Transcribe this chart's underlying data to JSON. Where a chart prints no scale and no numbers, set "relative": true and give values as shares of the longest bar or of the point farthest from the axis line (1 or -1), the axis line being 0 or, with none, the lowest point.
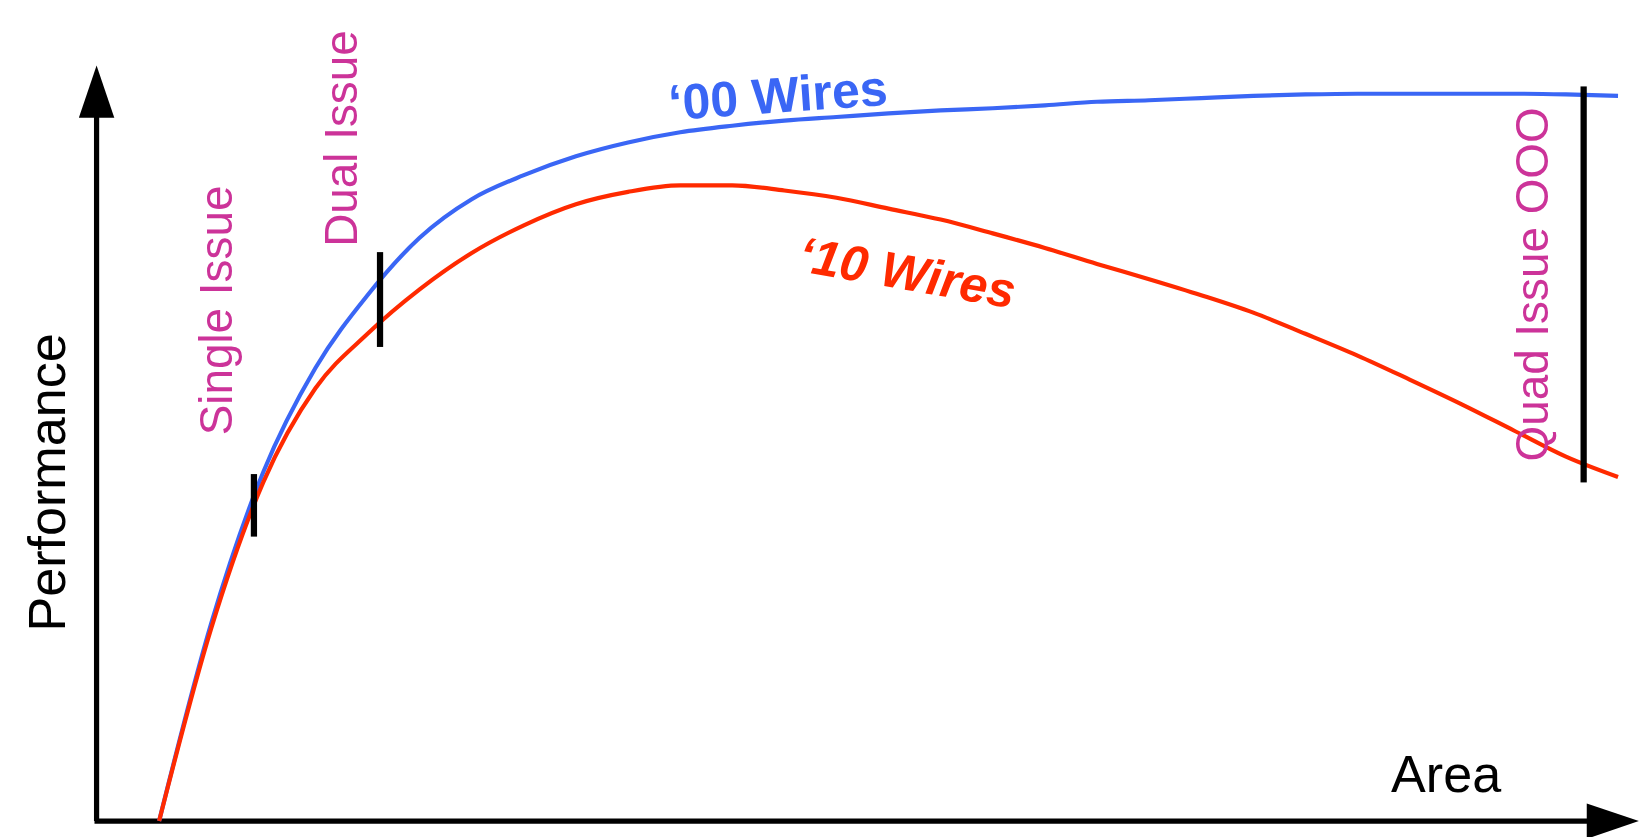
{
  "chart_data": {
    "type": "line",
    "relative": true,
    "xlabel": "Area",
    "ylabel": "Performance",
    "marker": "none",
    "line_style": "solid",
    "categories": [
      null,
      null,
      null,
      null,
      null,
      null,
      null,
      null,
      null,
      null,
      null,
      null,
      null,
      null,
      null,
      null,
      null,
      null,
      null,
      null,
      null,
      null,
      null,
      null,
      null,
      null,
      null,
      null,
      null
    ],
    "series": [
      {
        "name": "‘00 Wires",
        "color": "#3a66f5",
        "values": [
          0,
          0.272,
          0.48,
          0.623,
          0.723,
          0.802,
          0.855,
          0.888,
          0.914,
          0.933,
          0.947,
          0.956,
          0.963,
          0.968,
          0.973,
          0.977,
          0.98,
          0.984,
          0.989,
          0.991,
          0.994,
          0.997,
          0.999,
          1,
          1,
          1,
          1,
          0.999,
          0.997
        ]
      },
      {
        "name": "‘10 Wires",
        "color": "#ff2a00",
        "values": [
          0,
          0.265,
          0.466,
          0.595,
          0.67,
          0.731,
          0.781,
          0.819,
          0.848,
          0.865,
          0.874,
          0.874,
          0.867,
          0.857,
          0.842,
          0.827,
          0.808,
          0.788,
          0.766,
          0.745,
          0.723,
          0.699,
          0.67,
          0.64,
          0.607,
          0.573,
          0.537,
          0.501,
          0.473
        ]
      }
    ],
    "annotations": [
      "Single Issue",
      "Dual Issue",
      "Quad Issue OOO"
    ]
  }
}
